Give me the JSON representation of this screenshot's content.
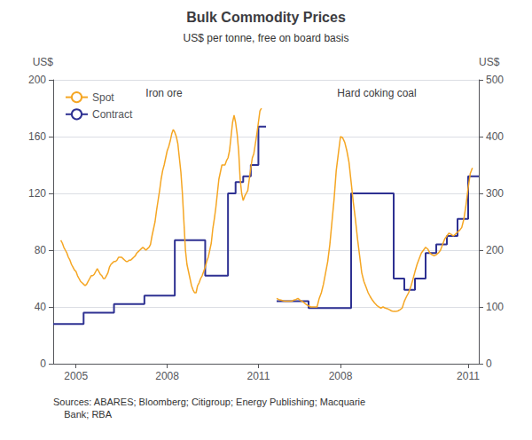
{
  "title": "Bulk Commodity Prices",
  "subtitle": "US$ per tonne, free on board basis",
  "source": "Sources: ABARES; Bloomberg; Citigroup; Energy Publishing; Macquarie\n    Bank; RBA",
  "chart_data": [
    {
      "type": "line",
      "title": "Iron ore",
      "ylabel": "US$",
      "xlim": [
        2004.25,
        2011.25
      ],
      "xticks": [
        2005,
        2008,
        2011
      ],
      "ylim": [
        0,
        200
      ],
      "yticks": [
        0,
        40,
        80,
        120,
        160,
        200
      ],
      "grid": true,
      "legend": "top-left",
      "series": [
        {
          "name": "Spot",
          "color": "#F5A623",
          "x": [
            2004.5,
            2004.55,
            2004.6,
            2004.65,
            2004.7,
            2004.75,
            2004.8,
            2004.85,
            2004.9,
            2004.95,
            2005.0,
            2005.05,
            2005.1,
            2005.15,
            2005.2,
            2005.25,
            2005.3,
            2005.35,
            2005.4,
            2005.45,
            2005.5,
            2005.55,
            2005.6,
            2005.65,
            2005.7,
            2005.75,
            2005.8,
            2005.85,
            2005.9,
            2005.95,
            2006.0,
            2006.05,
            2006.1,
            2006.15,
            2006.2,
            2006.25,
            2006.3,
            2006.35,
            2006.4,
            2006.45,
            2006.5,
            2006.55,
            2006.6,
            2006.65,
            2006.7,
            2006.75,
            2006.8,
            2006.85,
            2006.9,
            2006.95,
            2007.0,
            2007.05,
            2007.1,
            2007.15,
            2007.2,
            2007.25,
            2007.3,
            2007.35,
            2007.4,
            2007.45,
            2007.5,
            2007.55,
            2007.6,
            2007.65,
            2007.7,
            2007.75,
            2007.8,
            2007.85,
            2007.9,
            2007.95,
            2008.0,
            2008.05,
            2008.1,
            2008.15,
            2008.2,
            2008.25,
            2008.3,
            2008.35,
            2008.4,
            2008.45,
            2008.5,
            2008.55,
            2008.6,
            2008.65,
            2008.7,
            2008.75,
            2008.8,
            2008.85,
            2008.9,
            2008.95,
            2009.0,
            2009.05,
            2009.1,
            2009.15,
            2009.2,
            2009.25,
            2009.3,
            2009.35,
            2009.4,
            2009.45,
            2009.5,
            2009.55,
            2009.6,
            2009.65,
            2009.7,
            2009.75,
            2009.8,
            2009.85,
            2009.9,
            2009.95,
            2010.0,
            2010.05,
            2010.1,
            2010.15,
            2010.2,
            2010.25,
            2010.3,
            2010.35,
            2010.4,
            2010.45,
            2010.5,
            2010.55,
            2010.6,
            2010.65,
            2010.7,
            2010.75,
            2010.8,
            2010.85,
            2010.9,
            2010.95,
            2011.0,
            2011.05,
            2011.1
          ],
          "values": [
            87,
            85,
            82,
            80,
            78,
            75,
            73,
            70,
            68,
            66,
            65,
            62,
            60,
            58,
            57,
            56,
            55,
            56,
            58,
            60,
            62,
            62,
            63,
            65,
            67,
            65,
            63,
            62,
            60,
            60,
            62,
            64,
            68,
            70,
            71,
            72,
            72,
            73,
            75,
            75,
            75,
            74,
            73,
            72,
            72,
            73,
            73,
            74,
            75,
            76,
            78,
            79,
            80,
            81,
            82,
            81,
            80,
            81,
            82,
            84,
            90,
            95,
            100,
            108,
            115,
            122,
            130,
            136,
            140,
            145,
            150,
            153,
            157,
            162,
            165,
            163,
            160,
            155,
            145,
            135,
            120,
            100,
            80,
            70,
            65,
            60,
            55,
            52,
            50,
            50,
            55,
            57,
            60,
            62,
            65,
            68,
            72,
            75,
            80,
            85,
            95,
            102,
            110,
            120,
            130,
            135,
            140,
            140,
            140,
            143,
            145,
            150,
            160,
            170,
            175,
            170,
            162,
            150,
            130,
            120,
            115,
            118,
            120,
            122,
            130,
            138,
            145,
            148,
            155,
            162,
            170,
            178,
            180
          ]
        },
        {
          "name": "Contract",
          "type": "step",
          "color": "#2E3192",
          "x": [
            2004.25,
            2005.25,
            2006.25,
            2007.25,
            2008.25,
            2009.25,
            2010.0,
            2010.25,
            2010.5,
            2010.75,
            2011.0,
            2011.25
          ],
          "values": [
            28,
            36,
            42,
            48,
            87,
            62,
            120,
            128,
            132,
            140,
            167,
            167
          ]
        }
      ]
    },
    {
      "type": "line",
      "title": "Hard coking coal",
      "y2label": "US$",
      "xlim": [
        2006.25,
        2011.25
      ],
      "xticks": [
        2008,
        2011
      ],
      "y2lim": [
        0,
        500
      ],
      "y2ticks": [
        0,
        100,
        200,
        300,
        400,
        500
      ],
      "grid": true,
      "series": [
        {
          "name": "Spot",
          "color": "#F5A623",
          "axis": "y2",
          "x": [
            2006.5,
            2006.55,
            2006.6,
            2006.65,
            2006.7,
            2006.75,
            2006.8,
            2006.85,
            2006.9,
            2006.95,
            2007.0,
            2007.05,
            2007.1,
            2007.15,
            2007.2,
            2007.25,
            2007.3,
            2007.35,
            2007.4,
            2007.45,
            2007.5,
            2007.55,
            2007.6,
            2007.65,
            2007.7,
            2007.75,
            2007.8,
            2007.85,
            2007.9,
            2007.95,
            2008.0,
            2008.05,
            2008.1,
            2008.15,
            2008.2,
            2008.25,
            2008.3,
            2008.35,
            2008.4,
            2008.45,
            2008.5,
            2008.55,
            2008.6,
            2008.65,
            2008.7,
            2008.75,
            2008.8,
            2008.85,
            2008.9,
            2008.95,
            2009.0,
            2009.05,
            2009.1,
            2009.15,
            2009.2,
            2009.25,
            2009.3,
            2009.35,
            2009.4,
            2009.45,
            2009.5,
            2009.55,
            2009.6,
            2009.65,
            2009.7,
            2009.75,
            2009.8,
            2009.85,
            2009.9,
            2009.95,
            2010.0,
            2010.05,
            2010.1,
            2010.15,
            2010.2,
            2010.25,
            2010.3,
            2010.35,
            2010.4,
            2010.45,
            2010.5,
            2010.55,
            2010.6,
            2010.65,
            2010.7,
            2010.75,
            2010.8,
            2010.85,
            2010.9,
            2010.95,
            2011.0,
            2011.05,
            2011.1
          ],
          "values": [
            115,
            113,
            112,
            111,
            110,
            110,
            110,
            110,
            112,
            113,
            115,
            112,
            110,
            107,
            104,
            102,
            100,
            100,
            100,
            100,
            115,
            125,
            140,
            160,
            180,
            210,
            250,
            290,
            340,
            370,
            400,
            398,
            390,
            375,
            355,
            320,
            285,
            255,
            220,
            190,
            160,
            145,
            135,
            125,
            118,
            112,
            107,
            103,
            100,
            98,
            100,
            98,
            97,
            95,
            93,
            92,
            92,
            93,
            95,
            98,
            110,
            118,
            125,
            135,
            148,
            162,
            175,
            185,
            195,
            200,
            205,
            202,
            195,
            192,
            190,
            192,
            195,
            200,
            210,
            220,
            225,
            230,
            228,
            225,
            228,
            232,
            235,
            240,
            255,
            280,
            310,
            335,
            345
          ]
        },
        {
          "name": "Contract",
          "type": "step",
          "color": "#2E3192",
          "axis": "y2",
          "x": [
            2006.5,
            2007.25,
            2008.25,
            2009.25,
            2009.5,
            2009.75,
            2010.0,
            2010.25,
            2010.5,
            2010.75,
            2011.0,
            2011.25
          ],
          "values": [
            110,
            98,
            300,
            150,
            130,
            150,
            195,
            210,
            225,
            255,
            330,
            330
          ]
        }
      ]
    }
  ]
}
